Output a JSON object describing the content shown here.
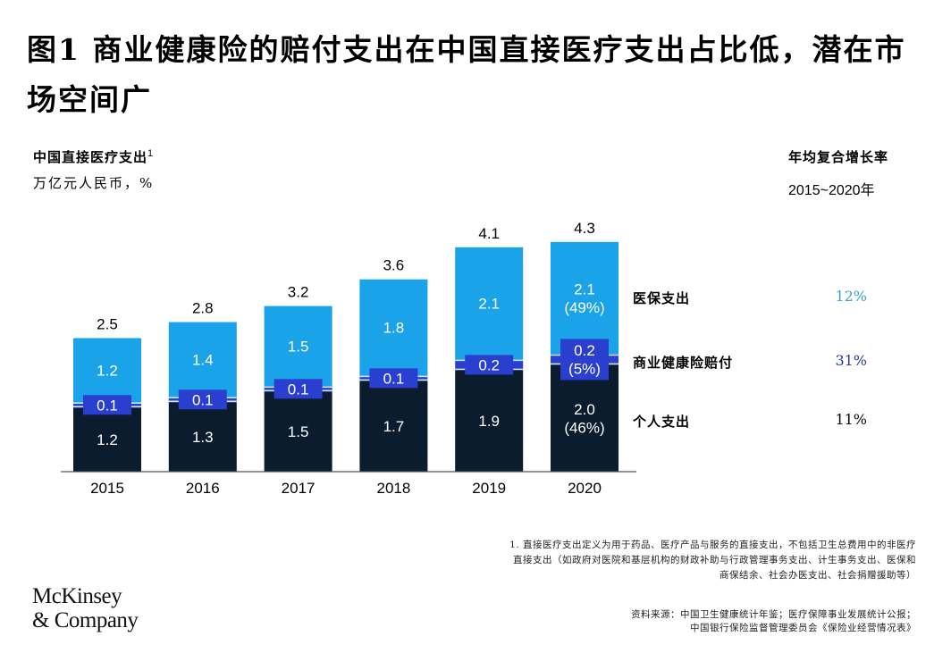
{
  "title": "图1 商业健康险的赔付支出在中国直接医疗支出占比低，潜在市场空间广",
  "unit_title": "中国直接医疗支出",
  "unit_title_footnote_mark": "1",
  "unit_subtitle": "万亿元人民币，%",
  "cagr_title": "年均复合增长率",
  "cagr_period": "2015~2020年",
  "legend": [
    {
      "label": "医保支出",
      "cagr": "12%",
      "color": "#3aa0c8"
    },
    {
      "label": "商业健康险赔付",
      "cagr": "31%",
      "color": "#2a3a9a"
    },
    {
      "label": "个人支出",
      "cagr": "11%",
      "color": "#000000"
    }
  ],
  "footnote": {
    "line1": "1. 直接医疗支出定义为用于药品、医疗产品与服务的直接支出，不包括卫生总费用中的非医疗",
    "line2": "直接支出（如政府对医院和基层机构的财政补助与行政管理事务支出、计生事务支出、医保和",
    "line3": "商保结余、社会办医支出、社会捐赠援助等）"
  },
  "source": {
    "line1": "资料来源：中国卫生健康统计年鉴；医疗保障事业发展统计公报；",
    "line2": "中国银行保险监督管理委员会《保险业经营情况表》"
  },
  "logo": {
    "line1": "McKinsey",
    "line2": "& Company"
  },
  "chart_data": {
    "type": "bar",
    "stacked": true,
    "title": "中国直接医疗支出",
    "ylabel": "万亿元人民币，%",
    "xlabel": "",
    "categories": [
      "2015",
      "2016",
      "2017",
      "2018",
      "2019",
      "2020"
    ],
    "series": [
      {
        "name": "个人支出",
        "color": "#0b1c2e",
        "values": [
          1.2,
          1.3,
          1.5,
          1.7,
          1.9,
          2.0
        ],
        "labels": [
          "1.2",
          "1.3",
          "1.5",
          "1.7",
          "1.9",
          "2.0\n(46%)"
        ]
      },
      {
        "name": "商业健康险赔付",
        "color": "#2a3fd0",
        "values": [
          0.1,
          0.1,
          0.1,
          0.1,
          0.2,
          0.2
        ],
        "labels": [
          "0.1",
          "0.1",
          "0.1",
          "0.1",
          "0.2",
          "0.2\n(5%)"
        ]
      },
      {
        "name": "医保支出",
        "color": "#1aa3e8",
        "values": [
          1.2,
          1.4,
          1.5,
          1.8,
          2.1,
          2.1
        ],
        "labels": [
          "1.2",
          "1.4",
          "1.5",
          "1.8",
          "2.1",
          "2.1\n(49%)"
        ]
      }
    ],
    "totals": [
      "2.5",
      "2.8",
      "3.2",
      "3.6",
      "4.1",
      "4.3"
    ],
    "ylim": [
      0,
      4.3
    ],
    "grid": false,
    "legend_position": "right"
  }
}
